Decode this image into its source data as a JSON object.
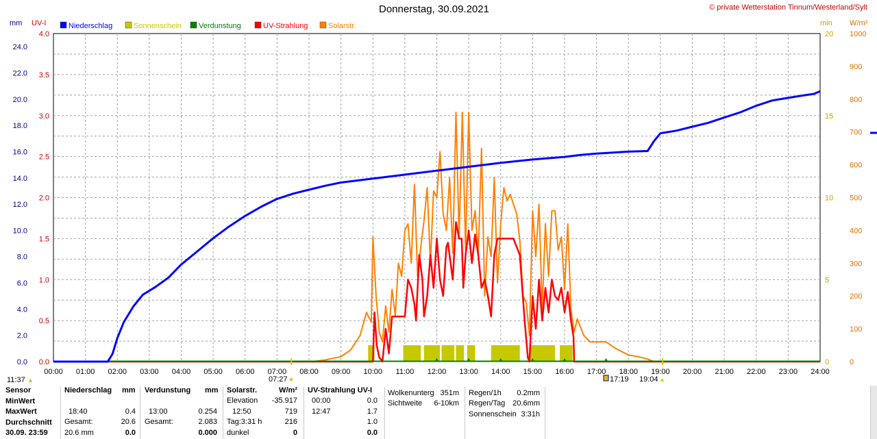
{
  "title": "Donnerstag, 30.09.2021",
  "copyright": "© private Wetterstation Tinnum/Westerland/Sylt",
  "colors": {
    "rain": "#0000ff",
    "sunshine": "#c8c800",
    "evaporation": "#008000",
    "uv": "#ff0000",
    "solar": "#ff8000",
    "grid": "#a0a0a0",
    "axis": "#000000",
    "mm_axis": "#00008b",
    "uv_axis": "#cc0000",
    "min_axis": "#c8a000",
    "wm2_axis": "#e07000"
  },
  "chart_data": {
    "type": "line",
    "title": "Donnerstag, 30.09.2021",
    "x_unit": "hour of day",
    "xlim": [
      0,
      24
    ],
    "x_ticks": [
      "00:00",
      "01:00",
      "02:00",
      "03:00",
      "04:00",
      "05:00",
      "06:00",
      "07:00",
      "08:00",
      "09:00",
      "10:00",
      "11:00",
      "12:00",
      "13:00",
      "14:00",
      "15:00",
      "16:00",
      "17:00",
      "18:00",
      "19:00",
      "20:00",
      "21:00",
      "22:00",
      "23:00",
      "24:00"
    ],
    "axes": {
      "mm": {
        "label": "mm",
        "ylim": [
          0,
          25
        ],
        "ticks": [
          "0.0",
          "2.0",
          "4.0",
          "6.0",
          "8.0",
          "10.0",
          "12.0",
          "14.0",
          "16.0",
          "18.0",
          "20.0",
          "22.0",
          "24.0"
        ]
      },
      "uv": {
        "label": "UV-I",
        "ylim": [
          0,
          4
        ],
        "ticks": [
          "0.0",
          "0.5",
          "1.0",
          "1.5",
          "2.0",
          "2.5",
          "3.0",
          "3.5",
          "4.0"
        ]
      },
      "min": {
        "label": "min",
        "ylim": [
          0,
          20
        ],
        "ticks": [
          "0",
          "5",
          "10",
          "15",
          "20"
        ]
      },
      "wm2": {
        "label": "W/m²",
        "ylim": [
          0,
          1000
        ],
        "ticks": [
          "0",
          "100",
          "200",
          "300",
          "400",
          "500",
          "600",
          "700",
          "800",
          "900",
          "1000"
        ]
      }
    },
    "legend": [
      "Niederschlag",
      "Sonnenschein",
      "Verdunstung",
      "UV-Strahlung",
      "Solarstr."
    ],
    "series": [
      {
        "name": "Niederschlag",
        "axis": "mm",
        "x": [
          0,
          1.7,
          1.85,
          2,
          2.2,
          2.5,
          2.8,
          3.2,
          3.6,
          4,
          4.5,
          5,
          5.5,
          6,
          6.5,
          7,
          7.5,
          8,
          8.5,
          9,
          9.5,
          10,
          11,
          12,
          13,
          14,
          15,
          16,
          16.5,
          17,
          18,
          18.6,
          18.8,
          19,
          19.5,
          20,
          20.5,
          21,
          21.5,
          22,
          22.5,
          23,
          23.5,
          23.8,
          24
        ],
        "values": [
          0,
          0,
          0.6,
          1.8,
          3,
          4.2,
          5.1,
          5.7,
          6.4,
          7.4,
          8.4,
          9.4,
          10.3,
          11.1,
          11.8,
          12.4,
          12.8,
          13.1,
          13.4,
          13.65,
          13.8,
          13.95,
          14.25,
          14.55,
          14.85,
          15.15,
          15.4,
          15.6,
          15.75,
          15.85,
          16.0,
          16.05,
          16.8,
          17.4,
          17.6,
          17.9,
          18.2,
          18.6,
          19.0,
          19.5,
          19.9,
          20.1,
          20.3,
          20.4,
          20.6
        ]
      },
      {
        "name": "Sonnenschein",
        "axis": "min",
        "type": "bar",
        "blocks": [
          [
            9.85,
            10.05
          ],
          [
            10.95,
            11.5
          ],
          [
            11.6,
            12.1
          ],
          [
            12.15,
            12.55
          ],
          [
            12.6,
            12.85
          ],
          [
            12.95,
            13.2
          ],
          [
            13.7,
            14.6
          ],
          [
            14.9,
            15.7
          ],
          [
            15.85,
            16.25
          ]
        ],
        "bar_height_min": 1
      },
      {
        "name": "Verdunstung",
        "axis": "mm",
        "values_note": "flat near zero",
        "x": [
          0,
          24
        ],
        "values": [
          0,
          0
        ]
      },
      {
        "name": "UV-Strahlung",
        "axis": "uv",
        "x": [
          0,
          10,
          10.05,
          10.12,
          10.2,
          10.3,
          10.4,
          10.5,
          10.6,
          10.7,
          10.8,
          10.9,
          11,
          11.1,
          11.2,
          11.3,
          11.35,
          11.45,
          11.55,
          11.6,
          11.7,
          11.8,
          11.9,
          12,
          12.1,
          12.2,
          12.3,
          12.35,
          12.5,
          12.6,
          12.7,
          12.78,
          12.83,
          12.9,
          13,
          13.1,
          13.2,
          13.3,
          13.4,
          13.5,
          13.6,
          13.7,
          13.8,
          13.9,
          14,
          14.2,
          14.4,
          14.6,
          14.75,
          14.85,
          14.9,
          15,
          15.1,
          15.2,
          15.3,
          15.4,
          15.5,
          15.6,
          15.7,
          15.8,
          15.9,
          16,
          16.1,
          16.2,
          16.28,
          16.3,
          24
        ],
        "values": [
          0,
          0,
          0.6,
          0.2,
          0.05,
          0,
          0.4,
          0.1,
          0.55,
          0.55,
          0.55,
          0.55,
          0.55,
          1.0,
          0.9,
          0.7,
          0.5,
          1.3,
          1.0,
          0.55,
          0.8,
          1.3,
          0.9,
          1.5,
          1.0,
          0.8,
          1.4,
          1.45,
          1.0,
          1.7,
          1.5,
          1.5,
          0.9,
          1.3,
          1.6,
          1.2,
          1.55,
          1.3,
          0.9,
          1.0,
          0.8,
          0.55,
          1.3,
          1.5,
          1.5,
          1.5,
          1.5,
          1.3,
          0.5,
          0.05,
          0.0,
          0.8,
          0.4,
          1.0,
          0.5,
          0.9,
          0.6,
          1.0,
          0.8,
          0.75,
          0.9,
          0.6,
          0.85,
          0.5,
          0.3,
          0,
          0
        ]
      },
      {
        "name": "Solarstr.",
        "axis": "wm2",
        "x": [
          0,
          8.1,
          8.5,
          9,
          9.3,
          9.6,
          9.8,
          9.95,
          10.0,
          10.1,
          10.2,
          10.3,
          10.4,
          10.5,
          10.6,
          10.7,
          10.8,
          10.9,
          11.0,
          11.1,
          11.2,
          11.3,
          11.4,
          11.5,
          11.6,
          11.7,
          11.8,
          11.9,
          12.0,
          12.1,
          12.2,
          12.3,
          12.4,
          12.5,
          12.6,
          12.7,
          12.8,
          12.9,
          13.0,
          13.1,
          13.2,
          13.3,
          13.4,
          13.5,
          13.6,
          13.7,
          13.8,
          13.9,
          14.0,
          14.1,
          14.2,
          14.3,
          14.4,
          14.5,
          14.6,
          14.7,
          14.8,
          14.9,
          15.0,
          15.1,
          15.2,
          15.3,
          15.4,
          15.5,
          15.6,
          15.7,
          15.8,
          15.9,
          16.0,
          16.1,
          16.2,
          16.3,
          16.4,
          16.6,
          16.8,
          17.0,
          17.3,
          17.6,
          18.0,
          18.3,
          18.6,
          18.8,
          24
        ],
        "values": [
          0,
          0,
          5,
          15,
          35,
          80,
          150,
          120,
          380,
          200,
          90,
          60,
          170,
          90,
          220,
          140,
          300,
          260,
          400,
          420,
          300,
          540,
          260,
          350,
          430,
          530,
          300,
          520,
          500,
          640,
          450,
          400,
          560,
          330,
          760,
          380,
          760,
          340,
          760,
          400,
          460,
          330,
          650,
          200,
          380,
          320,
          560,
          240,
          420,
          530,
          490,
          510,
          480,
          450,
          370,
          200,
          180,
          80,
          460,
          320,
          480,
          160,
          420,
          260,
          460,
          460,
          340,
          380,
          220,
          420,
          160,
          90,
          130,
          80,
          60,
          60,
          60,
          40,
          20,
          15,
          8,
          0,
          0
        ]
      }
    ],
    "event_markers": {
      "sunrise": "07:27",
      "sunset": "19:04",
      "moon_marker": "17:19",
      "left_marker": "11:37"
    }
  },
  "stats": {
    "labels": [
      "Sensor",
      "MinWert",
      "MaxWert",
      "Durchschnitt",
      "30.09. 23:59"
    ],
    "rain": {
      "header": "Niederschlag",
      "unit": "mm",
      "max_time": "18:40",
      "max_val": "0.4",
      "sum_label": "Gesamt:",
      "sum_val": "20.6",
      "last_val": "20.6 mm",
      "last_extra": "0.0"
    },
    "evap": {
      "header": "Verdunstung",
      "unit": "mm",
      "max_time": "13:00",
      "max_val": "0.254",
      "sum_label": "Gesamt:",
      "sum_val": "2.083",
      "last_val": "0.000"
    },
    "solar": {
      "header": "Solarstr.",
      "unit": "W/m²",
      "row1_label": "Elevation",
      "row1_val": "-35.917",
      "row2_label": "12:50",
      "row2_val": "719",
      "row3_label": "Tag:3:31 h",
      "row3_val": "216",
      "row4_label": "dunkel",
      "row4_val": "0"
    },
    "uv": {
      "header": "UV-Strahlung UV-I",
      "row1_label": "00:00",
      "row1_val": "0.0",
      "row2_label": "12:47",
      "row2_val": "1.7",
      "row3_val": "1.0",
      "row4_val": "0.0"
    },
    "cloud": {
      "row1_label": "Wolkenunterg",
      "row1_val": "351m",
      "row2_label": "Sichtweite",
      "row2_val": "6-10km"
    },
    "rainrate": {
      "row1_label": "Regen/1h",
      "row1_val": "0.2mm",
      "row2_label": "Regen/Tag",
      "row2_val": "20.6mm",
      "row3_label": "Sonnenschein",
      "row3_val": "3:31h"
    }
  }
}
